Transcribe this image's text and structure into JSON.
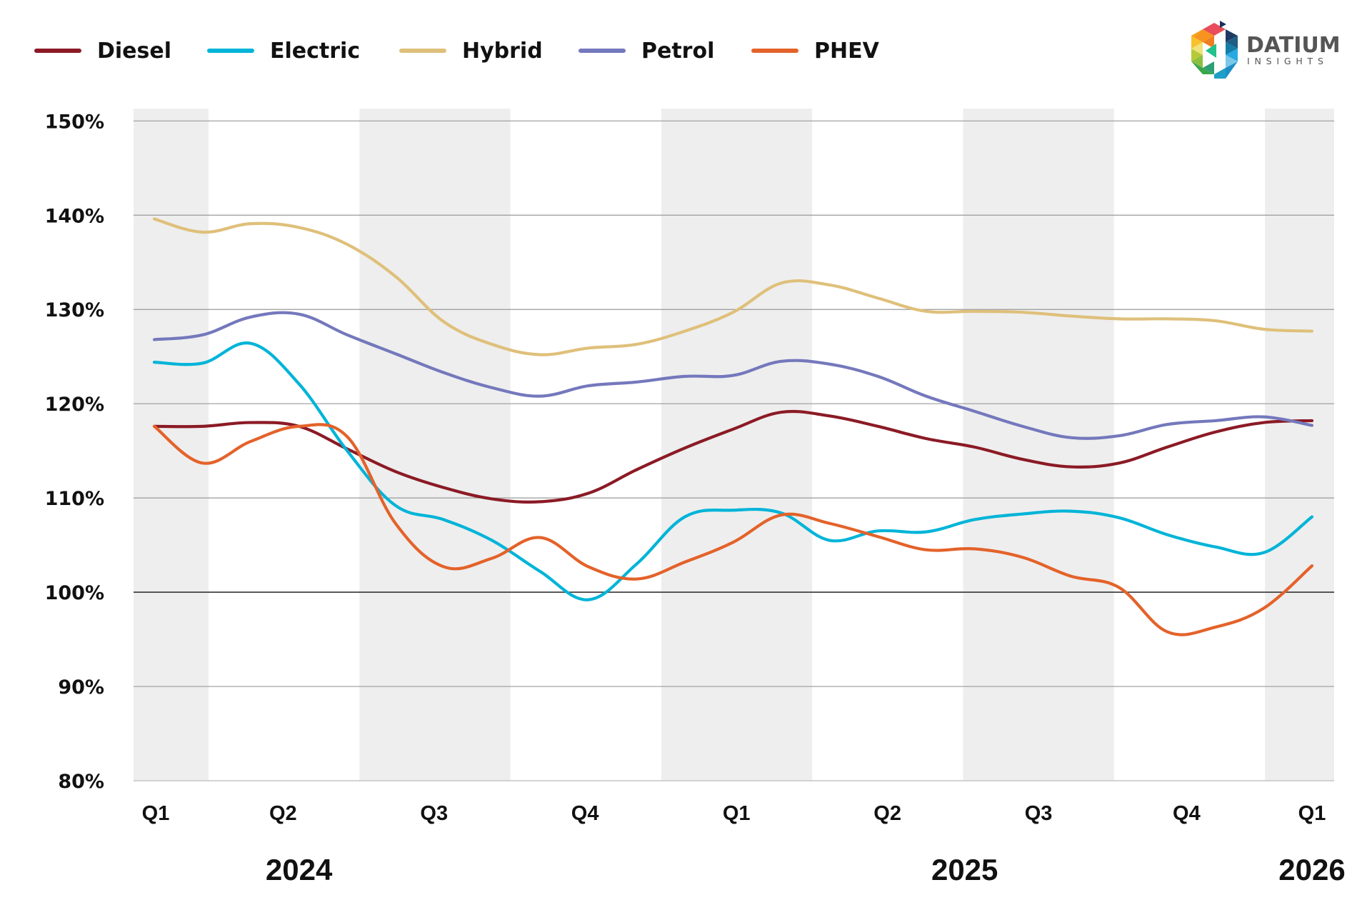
{
  "logo": {
    "name": "DATIUM",
    "subtitle": "INSIGHTS"
  },
  "chart_data": {
    "type": "line",
    "title": "",
    "xlabel": "",
    "ylabel": "",
    "ylim": [
      80,
      150
    ],
    "yticks": [
      80,
      90,
      100,
      110,
      120,
      130,
      140,
      150
    ],
    "ytick_labels": [
      "80%",
      "90%",
      "100%",
      "110%",
      "120%",
      "130%",
      "140%",
      "150%"
    ],
    "reference_line": 100,
    "grid": true,
    "legend_position": "top-left",
    "x": [
      "2024-01",
      "2024-02",
      "2024-03",
      "2024-04",
      "2024-05",
      "2024-06",
      "2024-07",
      "2024-08",
      "2024-09",
      "2024-10",
      "2024-11",
      "2024-12",
      "2025-01",
      "2025-02",
      "2025-03",
      "2025-04",
      "2025-05",
      "2025-06",
      "2025-07",
      "2025-08",
      "2025-09",
      "2025-10",
      "2025-11",
      "2025-12",
      "2026-01"
    ],
    "quarter_ticks": [
      {
        "label": "Q1",
        "index": 0
      },
      {
        "label": "Q2",
        "index": 2.67
      },
      {
        "label": "Q3",
        "index": 5.8
      },
      {
        "label": "Q4",
        "index": 8.93
      },
      {
        "label": "Q1",
        "index": 12.07
      },
      {
        "label": "Q2",
        "index": 15.2
      },
      {
        "label": "Q3",
        "index": 18.33
      },
      {
        "label": "Q4",
        "index": 21.4
      },
      {
        "label": "Q1",
        "index": 24
      }
    ],
    "years": [
      {
        "label": "2024",
        "index": 3.0
      },
      {
        "label": "2025",
        "index": 16.8
      },
      {
        "label": "2026",
        "index": 24
      }
    ],
    "series": [
      {
        "name": "Diesel",
        "color": "#8B1A25",
        "values": [
          117.6,
          117.6,
          118.0,
          117.6,
          115.2,
          112.8,
          111.1,
          109.9,
          109.6,
          110.5,
          113.0,
          115.3,
          117.3,
          119.1,
          118.7,
          117.6,
          116.3,
          115.4,
          114.1,
          113.3,
          113.7,
          115.4,
          117.0,
          118.0,
          118.2
        ]
      },
      {
        "name": "Electric",
        "color": "#00B4D8",
        "values": [
          124.4,
          124.3,
          126.4,
          122.1,
          115.0,
          109.2,
          107.7,
          105.5,
          102.2,
          99.2,
          103.0,
          108.0,
          108.7,
          108.4,
          105.5,
          106.5,
          106.4,
          107.7,
          108.3,
          108.6,
          107.9,
          106.1,
          104.8,
          104.2,
          108.0
        ]
      },
      {
        "name": "Hybrid",
        "color": "#DFC07A",
        "values": [
          139.6,
          138.2,
          139.1,
          138.7,
          136.9,
          133.5,
          128.7,
          126.3,
          125.2,
          125.9,
          126.3,
          127.7,
          129.7,
          132.8,
          132.6,
          131.2,
          129.8,
          129.8,
          129.7,
          129.3,
          129.0,
          129.0,
          128.8,
          127.9,
          127.7
        ]
      },
      {
        "name": "Petrol",
        "color": "#7478BC",
        "values": [
          126.8,
          127.3,
          129.2,
          129.5,
          127.3,
          125.3,
          123.3,
          121.7,
          120.8,
          121.9,
          122.3,
          122.9,
          123.0,
          124.5,
          124.2,
          122.9,
          120.8,
          119.2,
          117.6,
          116.4,
          116.6,
          117.8,
          118.2,
          118.6,
          117.7
        ]
      },
      {
        "name": "PHEV",
        "color": "#E4622A",
        "values": [
          117.6,
          113.7,
          116.0,
          117.6,
          116.5,
          107.3,
          102.7,
          103.6,
          105.8,
          102.7,
          101.4,
          103.2,
          105.3,
          108.2,
          107.3,
          105.9,
          104.5,
          104.6,
          103.7,
          101.7,
          100.5,
          95.8,
          96.3,
          98.3,
          102.8
        ]
      }
    ]
  }
}
